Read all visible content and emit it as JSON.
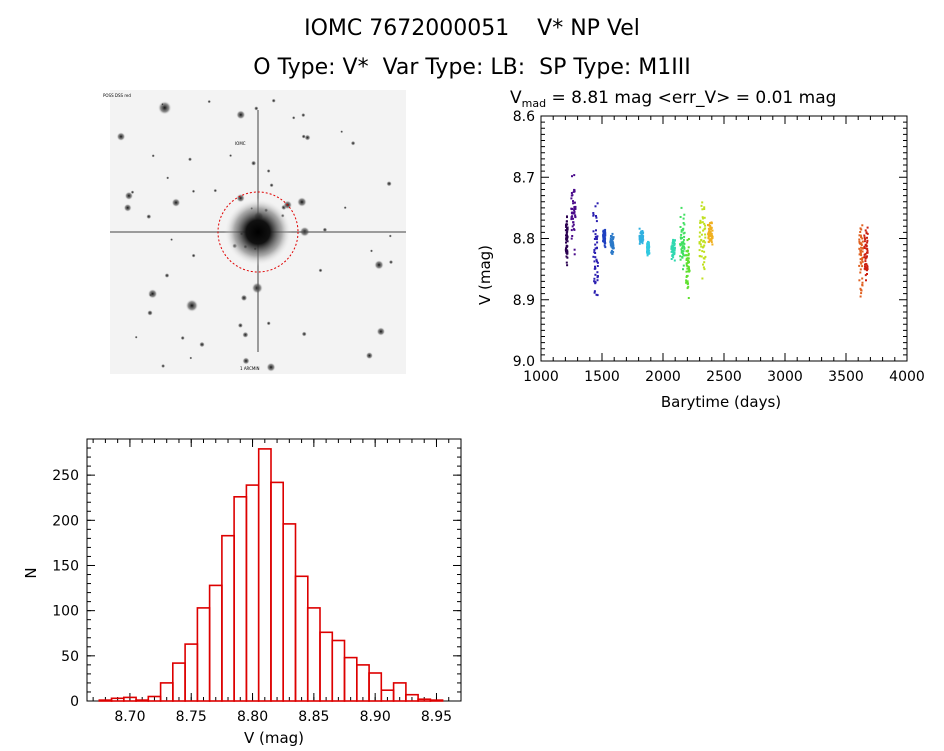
{
  "header": {
    "line1": "IOMC 7672000051    V* NP Vel",
    "line2": "O Type: V*  Var Type: LB:  SP Type: M1III"
  },
  "sky_image": {
    "corner_labels": [
      "POSS DSS red",
      "IOMC",
      "1 ARCMIN"
    ]
  },
  "chart_data": [
    {
      "type": "scatter",
      "title": "V_mag = 8.81 mag <err_V> = 0.01 mag",
      "title_parts": {
        "v": "V",
        "sub": "mad",
        "rest": " = 8.81 mag <err_V> = 0.01 mag"
      },
      "xlabel": "Barytime (days)",
      "ylabel": "V (mag)",
      "xlim": [
        1000,
        4000
      ],
      "ylim": [
        8.6,
        9.0
      ],
      "y_inverted": true,
      "xticks": [
        1000,
        1500,
        2000,
        2500,
        3000,
        3500,
        4000
      ],
      "yticks": [
        8.6,
        8.7,
        8.8,
        8.9,
        9.0
      ],
      "color_by": "time (rainbow)",
      "clusters": [
        {
          "x": [
            1195,
            1210
          ],
          "y": [
            8.75,
            8.86
          ],
          "color": "#2a0050"
        },
        {
          "x": [
            1240,
            1275
          ],
          "y": [
            8.67,
            8.84
          ],
          "color": "#4a0a8a"
        },
        {
          "x": [
            1420,
            1460
          ],
          "y": [
            8.68,
            8.94
          ],
          "color": "#2a1eb0"
        },
        {
          "x": [
            1500,
            1520
          ],
          "y": [
            8.77,
            8.82
          ],
          "color": "#2040c0"
        },
        {
          "x": [
            1560,
            1590
          ],
          "y": [
            8.78,
            8.83
          ],
          "color": "#2a78c8"
        },
        {
          "x": [
            1800,
            1830
          ],
          "y": [
            8.78,
            8.81
          ],
          "color": "#30b0e0"
        },
        {
          "x": [
            1860,
            1880
          ],
          "y": [
            8.8,
            8.83
          ],
          "color": "#30c8e0"
        },
        {
          "x": [
            2060,
            2090
          ],
          "y": [
            8.79,
            8.84
          ],
          "color": "#30d8b0"
        },
        {
          "x": [
            2130,
            2170
          ],
          "y": [
            8.74,
            8.87
          ],
          "color": "#40e060"
        },
        {
          "x": [
            2180,
            2210
          ],
          "y": [
            8.78,
            8.91
          ],
          "color": "#60e030"
        },
        {
          "x": [
            2290,
            2340
          ],
          "y": [
            8.72,
            8.88
          ],
          "color": "#c0e020"
        },
        {
          "x": [
            2360,
            2400
          ],
          "y": [
            8.76,
            8.82
          ],
          "color": "#f0b020"
        },
        {
          "x": [
            3600,
            3630
          ],
          "y": [
            8.74,
            8.92
          ],
          "color": "#e06020"
        },
        {
          "x": [
            3640,
            3670
          ],
          "y": [
            8.77,
            8.88
          ],
          "color": "#cc2010"
        }
      ]
    },
    {
      "type": "bar",
      "subtype": "histogram",
      "xlabel": "V (mag)",
      "ylabel": "N",
      "xlim": [
        8.665,
        8.97
      ],
      "ylim": [
        0,
        290
      ],
      "xticks": [
        8.7,
        8.75,
        8.8,
        8.85,
        8.9,
        8.95
      ],
      "yticks": [
        0,
        50,
        100,
        150,
        200,
        250
      ],
      "bar_color": "#dd0000",
      "bin_width": 0.01,
      "bin_lefts": [
        8.665,
        8.675,
        8.685,
        8.695,
        8.705,
        8.715,
        8.725,
        8.735,
        8.745,
        8.755,
        8.765,
        8.775,
        8.785,
        8.795,
        8.805,
        8.815,
        8.825,
        8.835,
        8.845,
        8.855,
        8.865,
        8.875,
        8.885,
        8.895,
        8.905,
        8.915,
        8.925,
        8.935,
        8.945
      ],
      "values": [
        0,
        1,
        3,
        4,
        1,
        5,
        20,
        42,
        63,
        103,
        128,
        183,
        226,
        239,
        279,
        242,
        196,
        138,
        103,
        76,
        67,
        48,
        40,
        31,
        12,
        20,
        7,
        2,
        1
      ]
    }
  ]
}
